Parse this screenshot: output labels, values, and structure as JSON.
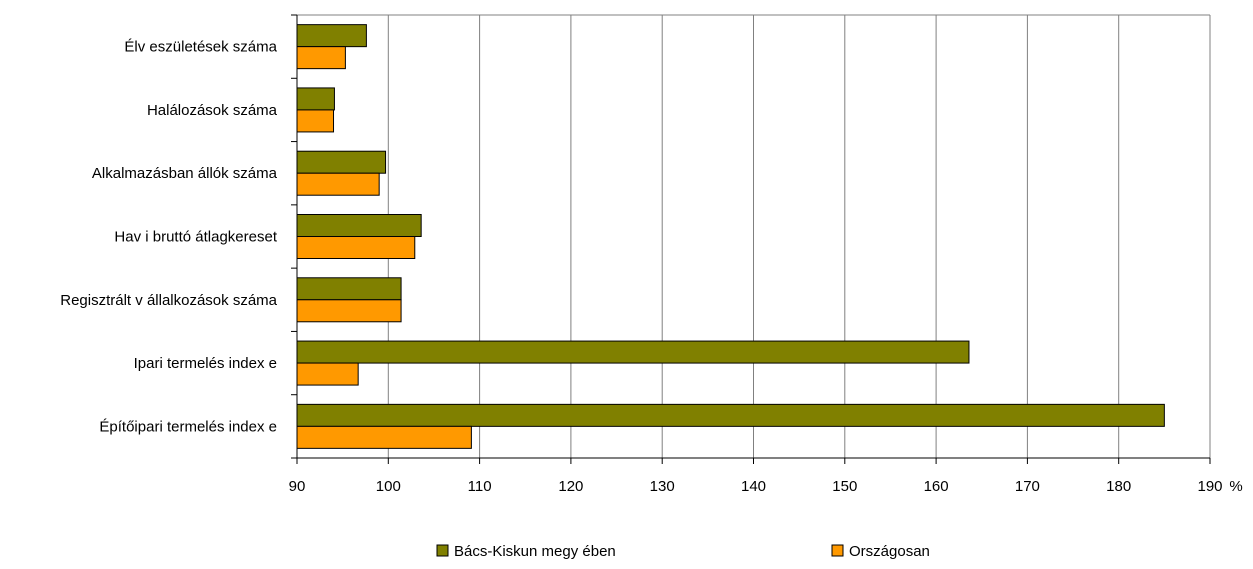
{
  "chart_data": {
    "type": "bar",
    "orientation": "horizontal",
    "categories": [
      "Élv eszületések száma",
      "Halálozások száma",
      "Alkalmazásban állók száma",
      "Hav i bruttó átlagkereset",
      "Regisztrált v állalkozások száma",
      "Ipari termelés index e",
      "Építőipari termelés index e"
    ],
    "series": [
      {
        "name": "Bács-Kiskun megy ében",
        "color": "#808000",
        "values": [
          97.6,
          94.1,
          99.7,
          103.6,
          101.4,
          163.6,
          185.0
        ]
      },
      {
        "name": "Országosan",
        "color": "#FF9900",
        "values": [
          95.3,
          94.0,
          99.0,
          102.9,
          101.4,
          96.7,
          109.1
        ]
      }
    ],
    "xlim": [
      90,
      190
    ],
    "xticks": [
      "90",
      "100",
      "110",
      "120",
      "130",
      "140",
      "150",
      "160",
      "170",
      "180",
      "190"
    ],
    "x_unit": "%",
    "grid": true,
    "legend_position": "bottom"
  }
}
